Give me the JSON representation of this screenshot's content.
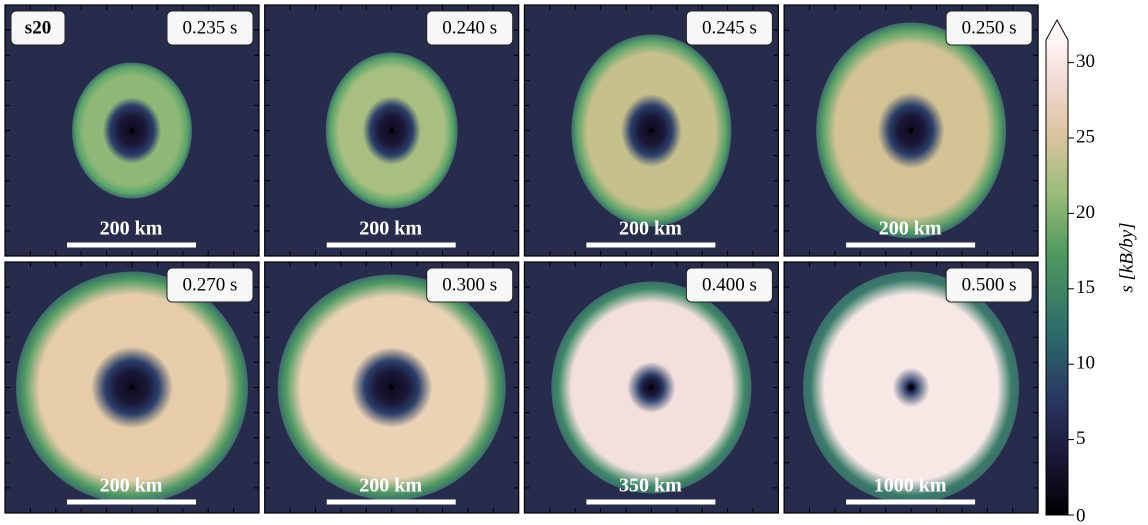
{
  "model": "s20",
  "panels": [
    {
      "time": "0.235 s",
      "scale": "200 km"
    },
    {
      "time": "0.240 s",
      "scale": "200 km"
    },
    {
      "time": "0.245 s",
      "scale": "200 km"
    },
    {
      "time": "0.250 s",
      "scale": "200 km"
    },
    {
      "time": "0.270 s",
      "scale": "200 km"
    },
    {
      "time": "0.300 s",
      "scale": "200 km"
    },
    {
      "time": "0.400 s",
      "scale": "350 km"
    },
    {
      "time": "0.500 s",
      "scale": "1000 km"
    }
  ],
  "colorbar": {
    "label": "s [kB/by]",
    "lim": [
      0,
      31.5
    ],
    "ticks": [
      0,
      5,
      10,
      15,
      20,
      25,
      30
    ],
    "extend": "max"
  }
}
